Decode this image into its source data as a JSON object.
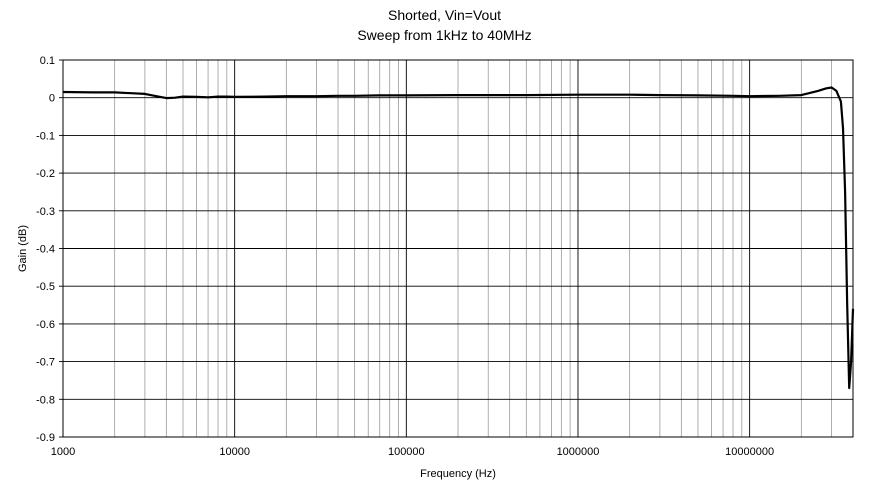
{
  "chart_data": {
    "type": "line",
    "title": "Shorted,  Vin=Vout",
    "subtitle": "Sweep from  1kHz to 40MHz",
    "xlabel": "Frequency (Hz)",
    "ylabel": "Gain (dB)",
    "x_scale": "log",
    "xlim": [
      1000,
      40000000
    ],
    "ylim": [
      -0.9,
      0.1
    ],
    "x_ticks": [
      "1000",
      "10000",
      "100000",
      "1000000",
      "10000000"
    ],
    "y_ticks": [
      "0.1",
      "0",
      "-0.1",
      "-0.2",
      "-0.3",
      "-0.4",
      "-0.5",
      "-0.6",
      "-0.7",
      "-0.8",
      "-0.9"
    ],
    "grid": true,
    "legend": "none",
    "series": [
      {
        "line_color": "#000000",
        "x": [
          1000,
          1500,
          2000,
          2500,
          3000,
          3500,
          4000,
          4500,
          5000,
          6000,
          7000,
          8000,
          9000,
          10000,
          15000,
          20000,
          30000,
          40000,
          50000,
          70000,
          100000,
          200000,
          300000,
          500000,
          1000000,
          2000000,
          3000000,
          5000000,
          8000000,
          10000000,
          15000000,
          20000000,
          25000000,
          28000000,
          30000000,
          32000000,
          34000000,
          35000000,
          36000000,
          37000000,
          38000000,
          39000000,
          40000000
        ],
        "y": [
          0.015,
          0.014,
          0.014,
          0.012,
          0.01,
          0.004,
          -0.001,
          0.0,
          0.003,
          0.002,
          0.001,
          0.003,
          0.003,
          0.002,
          0.003,
          0.004,
          0.004,
          0.005,
          0.005,
          0.006,
          0.006,
          0.007,
          0.007,
          0.007,
          0.008,
          0.008,
          0.007,
          0.006,
          0.005,
          0.004,
          0.005,
          0.007,
          0.018,
          0.025,
          0.027,
          0.018,
          -0.01,
          -0.08,
          -0.25,
          -0.55,
          -0.77,
          -0.7,
          -0.56
        ]
      }
    ]
  }
}
